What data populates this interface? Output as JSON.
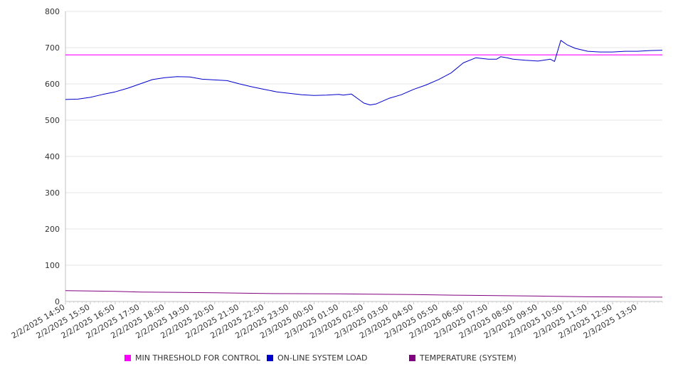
{
  "chart_data": {
    "type": "line",
    "title": "",
    "xlabel": "",
    "ylabel": "",
    "ylim": [
      0,
      800
    ],
    "y_ticks": [
      "0",
      "100",
      "200",
      "300",
      "400",
      "500",
      "600",
      "700",
      "800"
    ],
    "x_range": [
      "2/2/2025 14:50",
      "2/3/2025 14:50"
    ],
    "x_tick_labels": [
      "2/2/2025 14:50",
      "2/2/2025 15:50",
      "2/2/2025 16:50",
      "2/2/2025 17:50",
      "2/2/2025 18:50",
      "2/2/2025 19:50",
      "2/2/2025 20:50",
      "2/2/2025 21:50",
      "2/2/2025 22:50",
      "2/2/2025 23:50",
      "2/3/2025 00:50",
      "2/3/2025 01:50",
      "2/3/2025 02:50",
      "2/3/2025 03:50",
      "2/3/2025 04:50",
      "2/3/2025 05:50",
      "2/3/2025 06:50",
      "2/3/2025 07:50",
      "2/3/2025 08:50",
      "2/3/2025 09:50",
      "2/3/2025 10:50",
      "2/3/2025 11:50",
      "2/3/2025 12:50",
      "2/3/2025 13:50"
    ],
    "grid": true,
    "legend_position": "bottom",
    "series": [
      {
        "name": "MIN THRESHOLD FOR CONTROL",
        "color": "#ff00ff",
        "x": [
          "2/2/2025 14:50",
          "2/3/2025 14:50"
        ],
        "values": [
          680,
          680
        ]
      },
      {
        "name": "ON-LINE SYSTEM LOAD",
        "color": "#0000cc",
        "x": [
          "2/2/2025 14:50",
          "2/2/2025 15:20",
          "2/2/2025 15:50",
          "2/2/2025 16:20",
          "2/2/2025 16:50",
          "2/2/2025 17:20",
          "2/2/2025 17:50",
          "2/2/2025 18:20",
          "2/2/2025 18:50",
          "2/2/2025 19:20",
          "2/2/2025 19:50",
          "2/2/2025 20:20",
          "2/2/2025 20:50",
          "2/2/2025 21:20",
          "2/2/2025 21:50",
          "2/2/2025 22:20",
          "2/2/2025 22:50",
          "2/2/2025 23:20",
          "2/2/2025 23:50",
          "2/3/2025 00:20",
          "2/3/2025 00:50",
          "2/3/2025 01:20",
          "2/3/2025 01:50",
          "2/3/2025 02:00",
          "2/3/2025 02:20",
          "2/3/2025 02:50",
          "2/3/2025 03:05",
          "2/3/2025 03:20",
          "2/3/2025 03:50",
          "2/3/2025 04:20",
          "2/3/2025 04:50",
          "2/3/2025 05:20",
          "2/3/2025 05:50",
          "2/3/2025 06:20",
          "2/3/2025 06:50",
          "2/3/2025 07:20",
          "2/3/2025 07:50",
          "2/3/2025 08:10",
          "2/3/2025 08:20",
          "2/3/2025 08:35",
          "2/3/2025 08:50",
          "2/3/2025 09:20",
          "2/3/2025 09:50",
          "2/3/2025 10:20",
          "2/3/2025 10:30",
          "2/3/2025 10:45",
          "2/3/2025 11:00",
          "2/3/2025 11:20",
          "2/3/2025 11:50",
          "2/3/2025 12:20",
          "2/3/2025 12:50",
          "2/3/2025 13:20",
          "2/3/2025 13:50",
          "2/3/2025 14:20",
          "2/3/2025 14:50"
        ],
        "values": [
          557,
          558,
          563,
          571,
          578,
          588,
          600,
          612,
          617,
          620,
          619,
          613,
          611,
          609,
          600,
          592,
          585,
          578,
          574,
          570,
          568,
          569,
          571,
          569,
          572,
          547,
          542,
          545,
          560,
          570,
          585,
          597,
          612,
          630,
          658,
          672,
          668,
          668,
          675,
          672,
          668,
          665,
          663,
          668,
          662,
          720,
          708,
          698,
          690,
          688,
          688,
          690,
          690,
          692,
          693
        ]
      },
      {
        "name": "TEMPERATURE (SYSTEM)",
        "color": "#800080",
        "x": [
          "2/2/2025 14:50",
          "2/2/2025 16:50",
          "2/2/2025 17:50",
          "2/2/2025 20:50",
          "2/2/2025 22:50",
          "2/3/2025 01:50",
          "2/3/2025 04:50",
          "2/3/2025 06:50",
          "2/3/2025 09:50",
          "2/3/2025 11:50",
          "2/3/2025 14:50"
        ],
        "values": [
          30,
          28,
          26,
          24,
          22,
          21,
          19,
          17,
          15,
          13,
          12
        ]
      }
    ]
  }
}
